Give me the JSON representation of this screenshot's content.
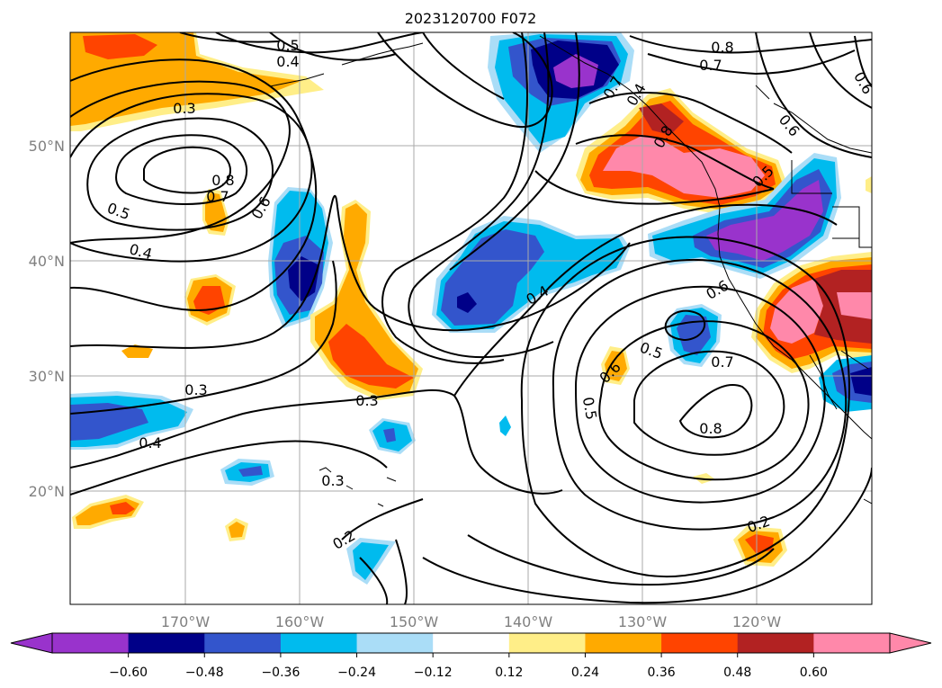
{
  "title": "2023120700 F072",
  "map": {
    "lat_labels": [
      "50°N",
      "40°N",
      "30°N",
      "20°N"
    ],
    "lon_labels": [
      "170°W",
      "160°W",
      "150°W",
      "140°W",
      "130°W",
      "120°W"
    ],
    "contour_labels": [
      "0.5",
      "0.4",
      "0.3",
      "0.8",
      "0.7",
      "0.6",
      "0.5",
      "0.4",
      "0.3",
      "0.4",
      "0.3",
      "0.3",
      "0.2",
      "0.8",
      "0.7",
      "0.6",
      "0.8",
      "0.7",
      "0.6",
      "0.5",
      "0.4",
      "0.6",
      "0.5",
      "0.7",
      "0.5",
      "0.8",
      "0.2",
      "0.6",
      "0.4"
    ],
    "colors": {
      "n060": "#9933cc",
      "n048": "#000088",
      "n036": "#3355cc",
      "n024": "#00bbee",
      "n012": "#aaddf7",
      "p012": "#ffee88",
      "p024": "#ffaa00",
      "p036": "#ff4400",
      "p048": "#b22222",
      "p060": "#ff88aa"
    }
  },
  "colorbar": {
    "ticks": [
      "−0.60",
      "−0.48",
      "−0.36",
      "−0.24",
      "−0.12",
      "0.12",
      "0.24",
      "0.36",
      "0.48",
      "0.60"
    ],
    "colors": [
      "#9933cc",
      "#000088",
      "#3355cc",
      "#00bbee",
      "#aaddf7",
      "#ffffff",
      "#ffee88",
      "#ffaa00",
      "#ff4400",
      "#b22222",
      "#ff88aa",
      "#ff88aa"
    ]
  }
}
